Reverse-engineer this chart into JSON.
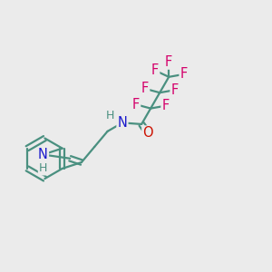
{
  "background_color": "#ebebeb",
  "bond_color": "#4a9080",
  "F_color": "#d4006a",
  "N_color": "#1a1acc",
  "O_color": "#cc1100",
  "H_color": "#4a9080",
  "line_width": 1.6,
  "font_size_atom": 10.5,
  "font_size_H": 9.0,
  "xlim": [
    0,
    1
  ],
  "ylim": [
    0,
    1
  ]
}
